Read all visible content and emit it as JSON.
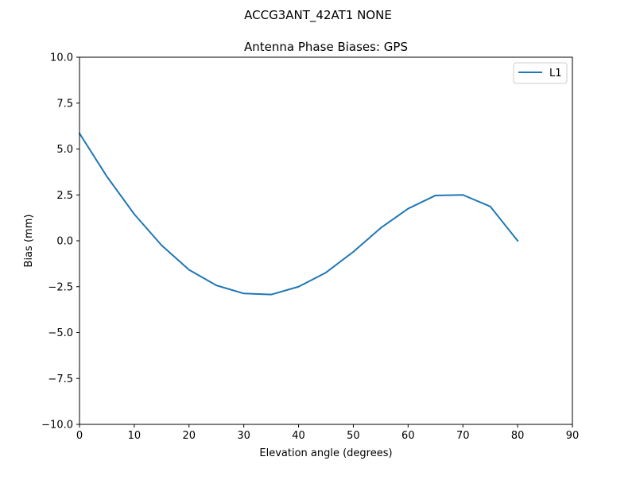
{
  "figure": {
    "suptitle": "ACCG3ANT_42AT1  NONE"
  },
  "chart_data": {
    "type": "line",
    "title": "Antenna Phase Biases: GPS",
    "xlabel": "Elevation angle (degrees)",
    "ylabel": "Bias (mm)",
    "xlim": [
      0,
      90
    ],
    "ylim": [
      -10,
      10
    ],
    "xticks": [
      0,
      10,
      20,
      30,
      40,
      50,
      60,
      70,
      80,
      90
    ],
    "xtick_labels": [
      "0",
      "10",
      "20",
      "30",
      "40",
      "50",
      "60",
      "70",
      "80",
      "90"
    ],
    "yticks": [
      -10,
      -7.5,
      -5,
      -2.5,
      0,
      2.5,
      5,
      7.5,
      10
    ],
    "ytick_labels": [
      "−10.0",
      "−7.5",
      "−5.0",
      "−2.5",
      "0.0",
      "2.5",
      "5.0",
      "7.5",
      "10.0"
    ],
    "grid": false,
    "legend_position": "top-right",
    "series": [
      {
        "name": "L1",
        "color": "#1f77b4",
        "x": [
          0,
          5,
          10,
          15,
          20,
          25,
          30,
          35,
          40,
          45,
          50,
          55,
          60,
          65,
          70,
          75,
          80
        ],
        "y": [
          5.85,
          3.5,
          1.45,
          -0.25,
          -1.58,
          -2.43,
          -2.87,
          -2.93,
          -2.5,
          -1.73,
          -0.6,
          0.7,
          1.75,
          2.47,
          2.5,
          1.87,
          0.0
        ]
      }
    ]
  }
}
